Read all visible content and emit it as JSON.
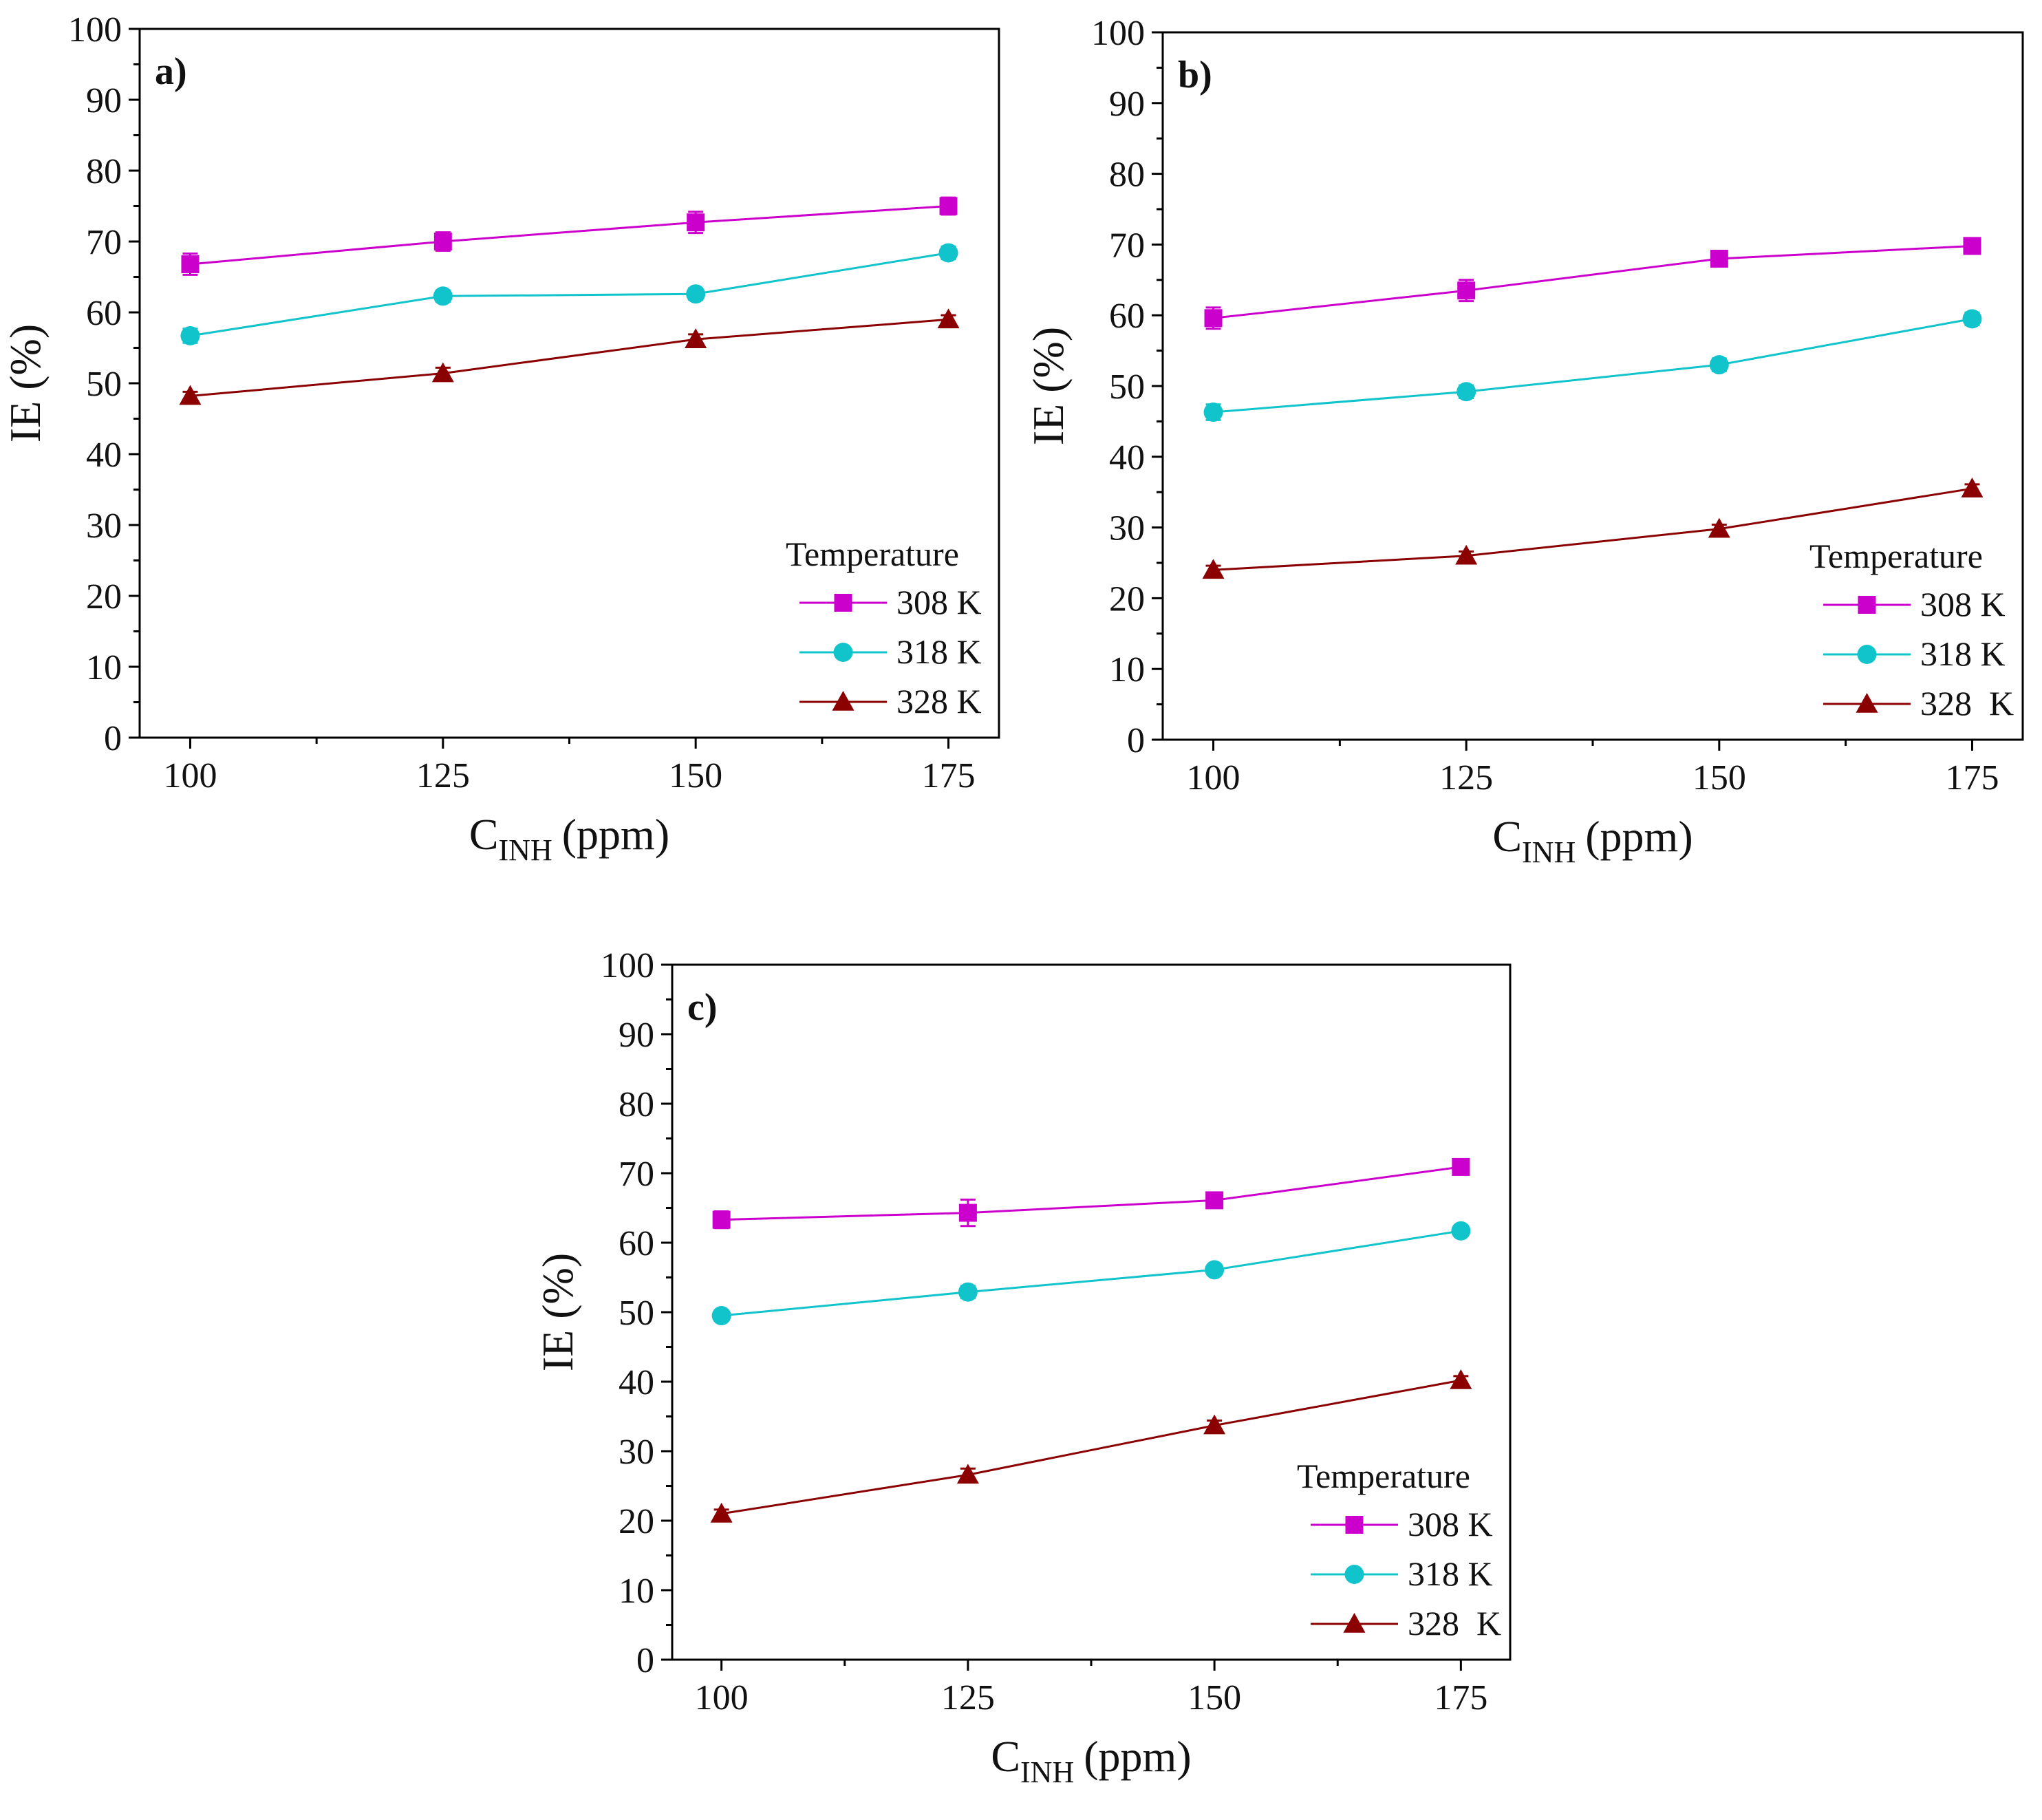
{
  "colors": {
    "308": "#cc00cc",
    "318": "#11c4cc",
    "328": "#8b0000"
  },
  "chart_data": [
    {
      "type": "line",
      "panel": "a)",
      "xlabel": "C",
      "xlabel_sub": "INH",
      "xlabel_unit": "(ppm)",
      "ylabel": "IE (%)",
      "x": [
        100,
        125,
        150,
        175
      ],
      "xticks": [
        "100",
        "125",
        "150",
        "175"
      ],
      "yticks": [
        "0",
        "10",
        "20",
        "30",
        "40",
        "50",
        "60",
        "70",
        "80",
        "90",
        "100"
      ],
      "xlim": [
        95,
        180
      ],
      "ylim": [
        0,
        100
      ],
      "legend_title": "Temperature",
      "legend_position": "bottom-right",
      "series": [
        {
          "name": "308 K",
          "marker": "square",
          "color": "#cc00cc",
          "values": [
            66.8,
            70.0,
            72.7,
            75.0
          ],
          "errors": [
            1.5,
            1.3,
            1.5,
            1.2
          ]
        },
        {
          "name": "318 K",
          "marker": "circle",
          "color": "#11c4cc",
          "values": [
            56.7,
            62.3,
            62.6,
            68.4
          ],
          "errors": [
            1.0,
            0.8,
            0.8,
            0.9
          ]
        },
        {
          "name": "328 K",
          "marker": "triangle",
          "color": "#8b0000",
          "values": [
            48.2,
            51.4,
            56.2,
            59.0
          ],
          "errors": [
            0.6,
            0.8,
            0.7,
            0.6
          ]
        }
      ]
    },
    {
      "type": "line",
      "panel": "b)",
      "xlabel": "C",
      "xlabel_sub": "INH",
      "xlabel_unit": "(ppm)",
      "ylabel": "IE (%)",
      "x": [
        100,
        125,
        150,
        175
      ],
      "xticks": [
        "100",
        "125",
        "150",
        "175"
      ],
      "yticks": [
        "0",
        "10",
        "20",
        "30",
        "40",
        "50",
        "60",
        "70",
        "80",
        "90",
        "100"
      ],
      "xlim": [
        95,
        180
      ],
      "ylim": [
        0,
        100
      ],
      "legend_title": "Temperature",
      "legend_position": "bottom-right",
      "series": [
        {
          "name": "308 K",
          "marker": "square",
          "color": "#cc00cc",
          "values": [
            59.6,
            63.5,
            68.0,
            69.8
          ],
          "errors": [
            1.5,
            1.5,
            0.9,
            0.6
          ]
        },
        {
          "name": "318 K",
          "marker": "circle",
          "color": "#11c4cc",
          "values": [
            46.3,
            49.2,
            53.0,
            59.5
          ],
          "errors": [
            1.1,
            0.9,
            0.9,
            0.9
          ]
        },
        {
          "name": "328  K",
          "marker": "triangle",
          "color": "#8b0000",
          "values": [
            24.0,
            26.0,
            29.8,
            35.5
          ],
          "errors": [
            0.6,
            0.6,
            0.6,
            0.6
          ]
        }
      ]
    },
    {
      "type": "line",
      "panel": "c)",
      "xlabel": "C",
      "xlabel_sub": "INH",
      "xlabel_unit": "(ppm)",
      "ylabel": "IE (%)",
      "x": [
        100,
        125,
        150,
        175
      ],
      "xticks": [
        "100",
        "125",
        "150",
        "175"
      ],
      "yticks": [
        "0",
        "10",
        "20",
        "30",
        "40",
        "50",
        "60",
        "70",
        "80",
        "90",
        "100"
      ],
      "xlim": [
        95,
        180
      ],
      "ylim": [
        0,
        100
      ],
      "legend_title": "Temperature",
      "legend_position": "bottom-right",
      "series": [
        {
          "name": "308 K",
          "marker": "square",
          "color": "#cc00cc",
          "values": [
            63.3,
            64.3,
            66.1,
            70.9
          ],
          "errors": [
            1.2,
            1.9,
            0.6,
            0.6
          ]
        },
        {
          "name": "318 K",
          "marker": "circle",
          "color": "#11c4cc",
          "values": [
            49.5,
            52.9,
            56.1,
            61.7
          ],
          "errors": [
            0.6,
            0.9,
            0.7,
            0.6
          ]
        },
        {
          "name": "328  K",
          "marker": "triangle",
          "color": "#8b0000",
          "values": [
            21.0,
            26.6,
            33.7,
            40.2
          ],
          "errors": [
            0.6,
            0.9,
            0.7,
            0.6
          ]
        }
      ]
    }
  ]
}
